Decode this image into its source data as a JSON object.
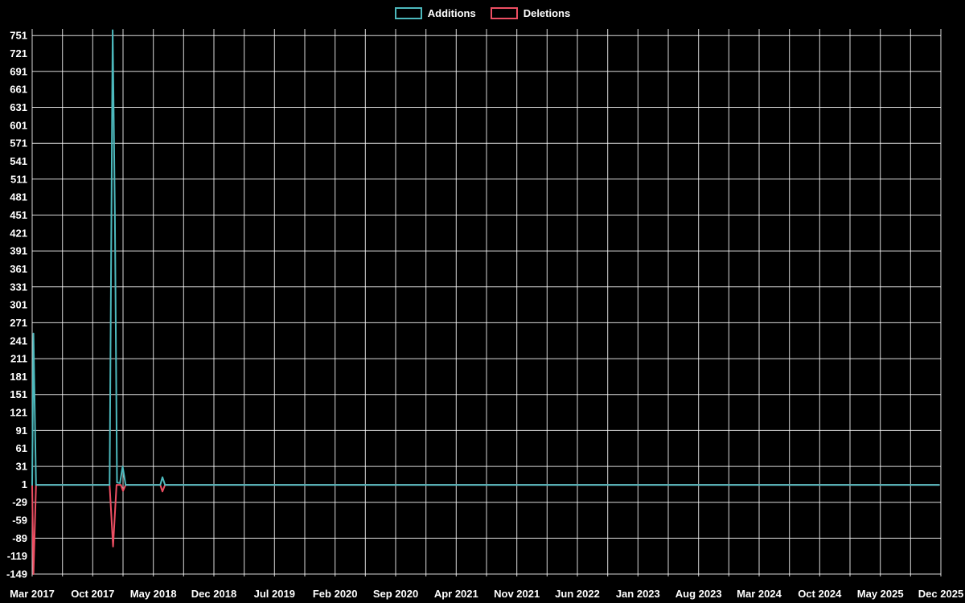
{
  "legend": {
    "items": [
      {
        "label": "Additions",
        "color": "#4db9bd"
      },
      {
        "label": "Deletions",
        "color": "#ee4f63"
      }
    ]
  },
  "chart_data": {
    "type": "line",
    "title": "",
    "xlabel": "",
    "ylabel": "",
    "background_color": "#000000",
    "grid": true,
    "grid_color": "#ffffff",
    "text_color": "#ffffff",
    "legend_position": "top",
    "x_tick_labels": [
      "Mar 2017",
      "Oct 2017",
      "May 2018",
      "Dec 2018",
      "Jul 2019",
      "Feb 2020",
      "Sep 2020",
      "Apr 2021",
      "Nov 2021",
      "Jun 2022",
      "Jan 2023",
      "Aug 2023",
      "Mar 2024",
      "Oct 2024",
      "May 2025",
      "Dec 2025"
    ],
    "months_per_x_label": 7,
    "x_range_months": [
      0,
      105
    ],
    "x_grid_step_months": 3.5,
    "y_ticks": [
      751,
      721,
      691,
      661,
      631,
      601,
      571,
      541,
      511,
      481,
      451,
      421,
      391,
      361,
      331,
      301,
      271,
      241,
      211,
      181,
      151,
      121,
      91,
      61,
      31,
      1,
      -29,
      -59,
      -89,
      -119,
      -149
    ],
    "y_grid_values": [
      751,
      691,
      631,
      571,
      511,
      451,
      391,
      331,
      271,
      211,
      151,
      91,
      31,
      -29,
      -89,
      -149
    ],
    "y_range": [
      -153,
      762
    ],
    "series": [
      {
        "name": "Additions",
        "color": "#4db9bd",
        "points": [
          [
            0,
            0
          ],
          [
            0.15,
            253
          ],
          [
            0.45,
            0
          ],
          [
            8.95,
            0
          ],
          [
            9.3,
            760
          ],
          [
            9.55,
            461
          ],
          [
            9.8,
            4
          ],
          [
            10.15,
            3
          ],
          [
            10.45,
            31
          ],
          [
            10.8,
            0
          ],
          [
            14.8,
            0
          ],
          [
            15.05,
            13
          ],
          [
            15.35,
            0
          ],
          [
            104.8,
            0
          ]
        ]
      },
      {
        "name": "Deletions",
        "color": "#ee4f63",
        "points": [
          [
            0,
            0
          ],
          [
            0.15,
            -149
          ],
          [
            0.45,
            0
          ],
          [
            8.95,
            0
          ],
          [
            9.35,
            -103
          ],
          [
            9.75,
            0
          ],
          [
            10.25,
            0
          ],
          [
            10.5,
            -10
          ],
          [
            10.8,
            0
          ],
          [
            14.8,
            0
          ],
          [
            15.05,
            -11
          ],
          [
            15.35,
            0
          ],
          [
            104.8,
            0
          ]
        ]
      }
    ]
  }
}
